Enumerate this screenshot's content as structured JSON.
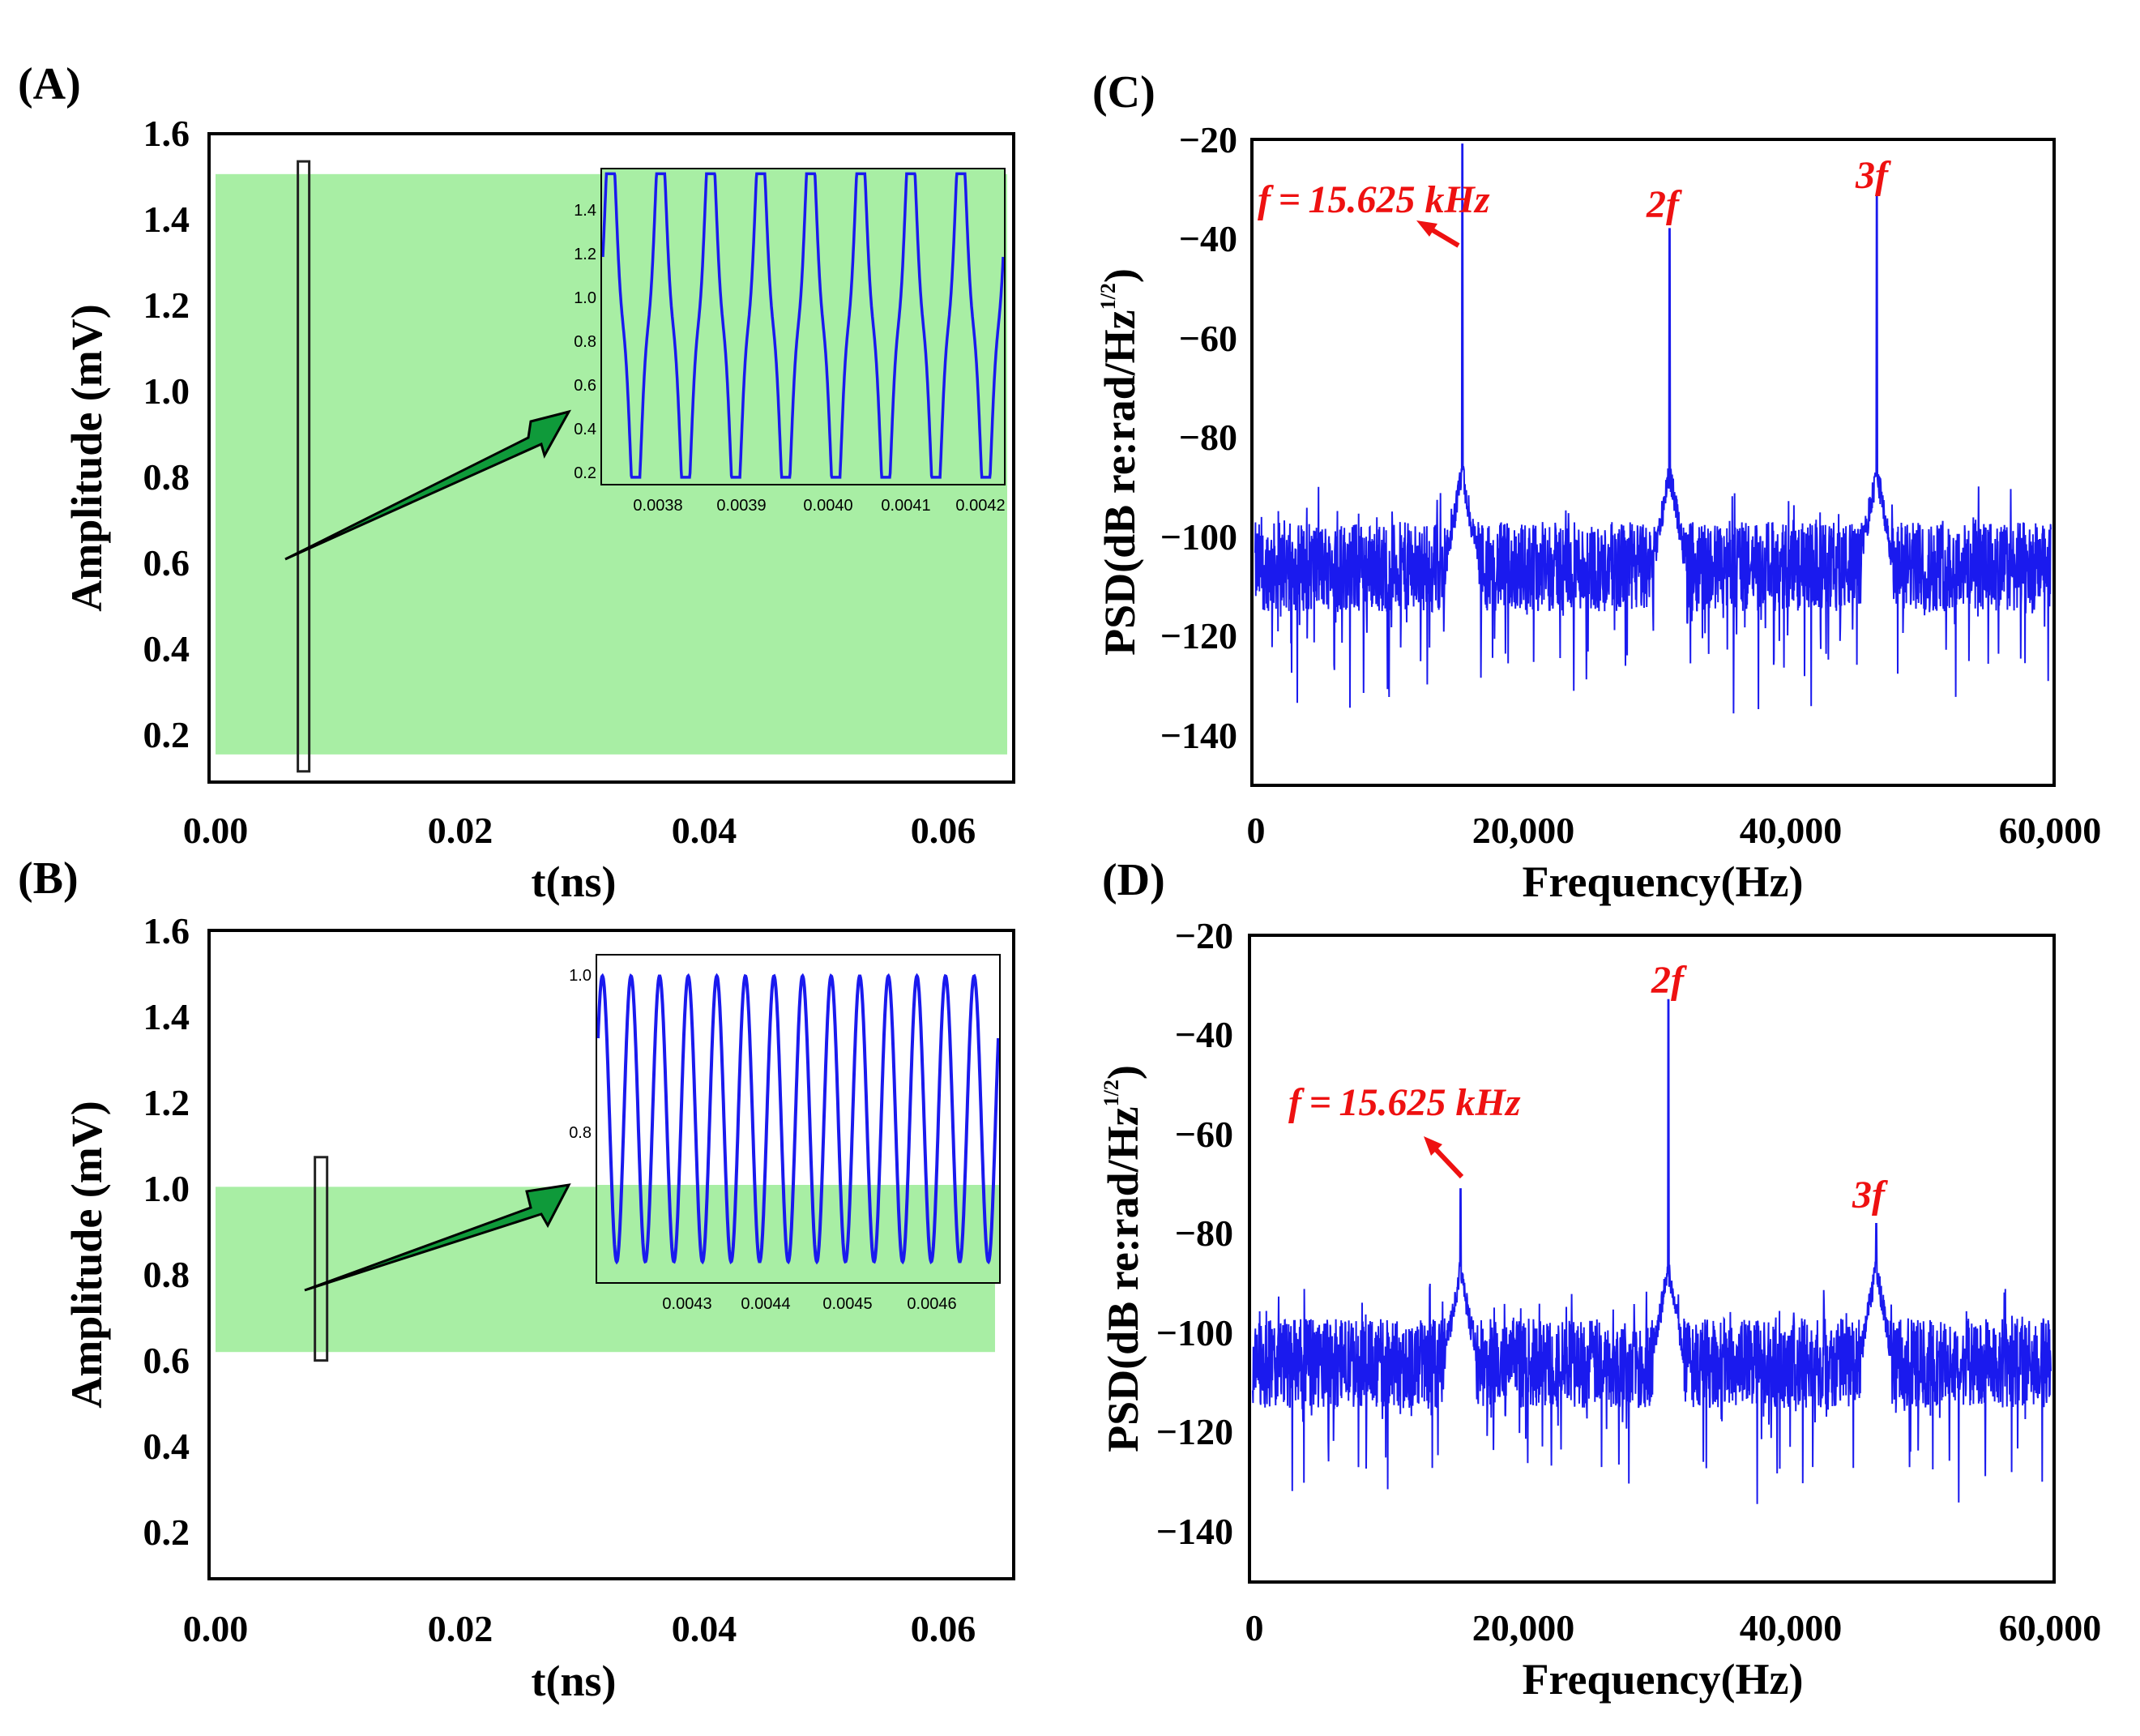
{
  "chart_data": [
    {
      "panel_label": "(A)",
      "type": "area",
      "xlabel": "t(ns)",
      "ylabel": "Amplitude (mV)",
      "xlim": [
        0.0,
        0.065
      ],
      "ylim": [
        0.1,
        1.6
      ],
      "x_ticks": [
        "0.00",
        "0.02",
        "0.04",
        "0.06"
      ],
      "y_ticks": [
        "0.2",
        "0.4",
        "0.6",
        "0.8",
        "1.0",
        "1.2",
        "1.4",
        "1.6"
      ],
      "band": {
        "x_start": 0.0,
        "x_end": 0.065,
        "y_min": 0.15,
        "y_max": 1.52,
        "color": "#a8eea4"
      },
      "zoom_window": {
        "x_start": 0.0037,
        "x_end": 0.0042,
        "y_min": 0.11,
        "y_max": 1.55
      },
      "inset": {
        "xlim": [
          0.00373,
          0.00422
        ],
        "ylim": [
          0.1,
          1.55
        ],
        "x_ticks": [
          "0.0038",
          "0.0039",
          "0.0040",
          "0.0041",
          "0.0042"
        ],
        "y_ticks": [
          "0.2",
          "0.4",
          "0.6",
          "0.8",
          "1.0",
          "1.2",
          "1.4"
        ],
        "cycles": 8,
        "wave_min": 0.16,
        "wave_max": 1.5,
        "line_color": "#1a1aee"
      },
      "arrow_color": "#0f9a3a"
    },
    {
      "panel_label": "(B)",
      "type": "area",
      "xlabel": "t(ns)",
      "ylabel": "Amplitude (mV)",
      "xlim": [
        0.0,
        0.065
      ],
      "ylim": [
        0.1,
        1.6
      ],
      "x_ticks": [
        "0.00",
        "0.02",
        "0.04",
        "0.06"
      ],
      "y_ticks": [
        "0.2",
        "0.4",
        "0.6",
        "0.8",
        "1.0",
        "1.2",
        "1.4",
        "1.6"
      ],
      "band": {
        "x_start": 0.0,
        "x_end": 0.064,
        "y_min": 0.62,
        "y_max": 1.01,
        "color": "#a8eea4"
      },
      "zoom_window": {
        "x_start": 0.0051,
        "x_end": 0.0061,
        "y_min": 0.6,
        "y_max": 1.08
      },
      "inset": {
        "xlim": [
          0.00421,
          0.00467
        ],
        "ylim": [
          0.7,
          1.03
        ],
        "x_ticks": [
          "0.0043",
          "0.0044",
          "0.0045",
          "0.0046"
        ],
        "y_ticks": [
          "0.8",
          "1.0"
        ],
        "cycles": 14,
        "wave_min": 0.72,
        "wave_max": 1.01,
        "line_color": "#1a1aee"
      },
      "arrow_color": "#0f9a3a"
    },
    {
      "panel_label": "(C)",
      "type": "line",
      "xlabel": "Frequency(Hz)",
      "ylabel_main": "PSD(dB re:rad/Hz",
      "ylabel_sup": "1/2",
      "ylabel_end": ")",
      "xlim": [
        0,
        60000
      ],
      "ylim": [
        -150,
        -20
      ],
      "x_ticks": [
        "0",
        "20,000",
        "40,000",
        "60,000"
      ],
      "y_ticks": [
        "−20",
        "−40",
        "−60",
        "−80",
        "−100",
        "−120",
        "−140"
      ],
      "noise_floor_db": -106,
      "peaks": [
        {
          "freq_hz": 15625,
          "psd_db": -21
        },
        {
          "freq_hz": 31250,
          "psd_db": -38
        },
        {
          "freq_hz": 46875,
          "psd_db": -31
        }
      ],
      "line_color": "#1a1aee",
      "annotations": {
        "fundamental": "f = 15.625 kHz",
        "second": "2f",
        "third": "3f",
        "color": "#ee1111"
      }
    },
    {
      "panel_label": "(D)",
      "type": "line",
      "xlabel": "Frequency(Hz)",
      "ylabel_main": "PSD(dB re:rad/Hz",
      "ylabel_sup": "1/2",
      "ylabel_end": ")",
      "xlim": [
        0,
        60000
      ],
      "ylim": [
        -150,
        -20
      ],
      "x_ticks": [
        "0",
        "20,000",
        "40,000",
        "60,000"
      ],
      "y_ticks": [
        "−20",
        "−40",
        "−60",
        "−80",
        "−100",
        "−120",
        "−140"
      ],
      "noise_floor_db": -106,
      "peaks": [
        {
          "freq_hz": 15625,
          "psd_db": -71
        },
        {
          "freq_hz": 31250,
          "psd_db": -33
        },
        {
          "freq_hz": 46875,
          "psd_db": -78
        }
      ],
      "line_color": "#1a1aee",
      "annotations": {
        "fundamental": "f = 15.625 kHz",
        "second": "2f",
        "third": "3f",
        "color": "#ee1111"
      }
    }
  ]
}
